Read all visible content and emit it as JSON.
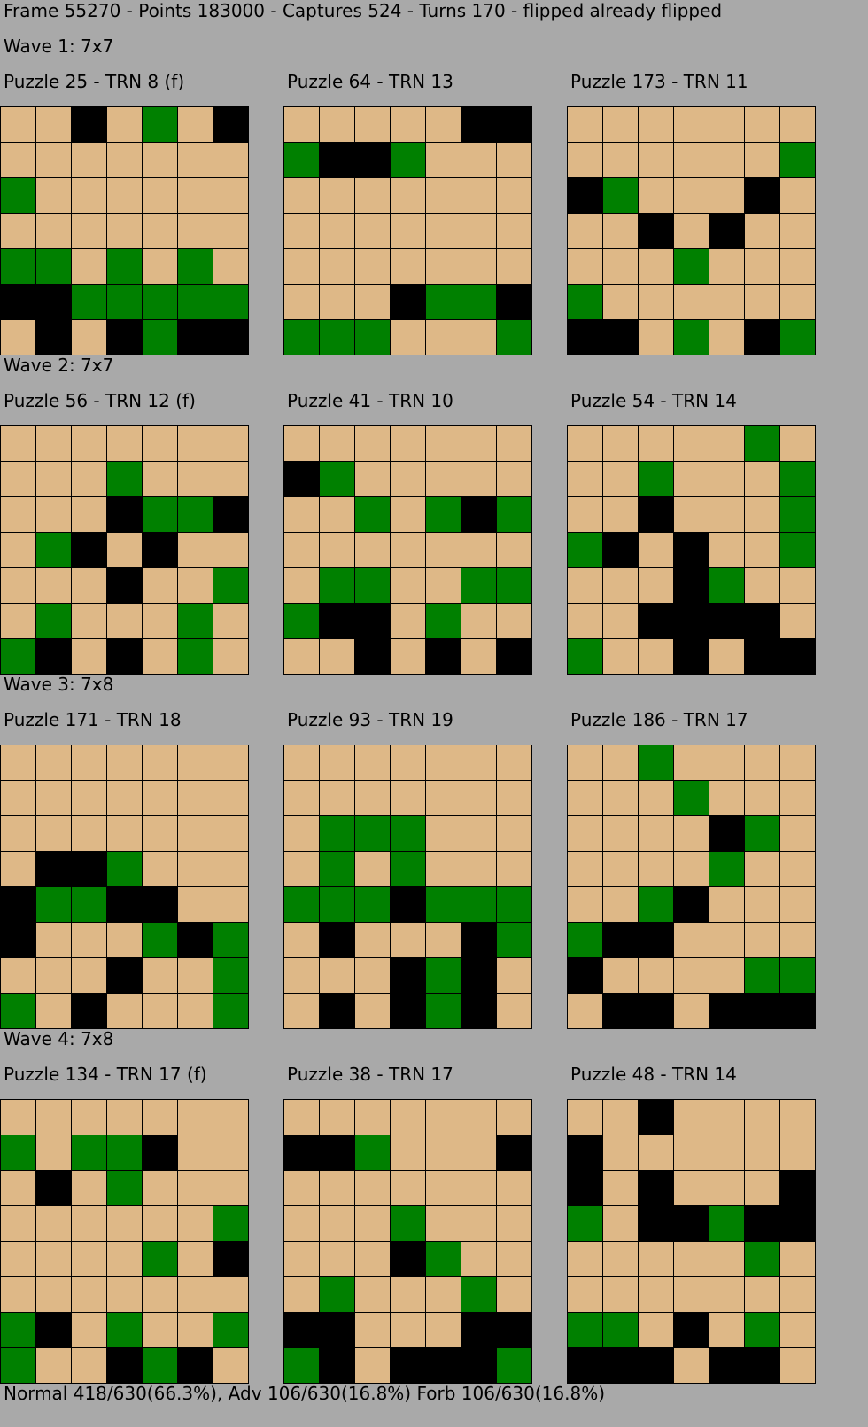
{
  "header": {
    "status": "Frame 55270 - Points 183000 - Captures 524 - Turns 170 - flipped already flipped"
  },
  "waves": [
    {
      "label": "Wave 1: 7x7",
      "puzzles": [
        {
          "title": "Puzzle 25 - TRN 8 (f)",
          "rows": [
            "..B.G.B",
            ".......",
            "G......",
            ".......",
            "GG.G.G.",
            "BBGGGGG",
            ".B.BGBB"
          ]
        },
        {
          "title": "Puzzle 64 - TRN 13",
          "rows": [
            ".....BB",
            "GBBG...",
            ".......",
            ".......",
            ".......",
            "...BGGB",
            "GGG...G"
          ]
        },
        {
          "title": "Puzzle 173 - TRN 11",
          "rows": [
            ".......",
            "......G",
            "BG...B.",
            "..B.B..",
            "...G...",
            "G......",
            "BB.G.BG"
          ]
        }
      ]
    },
    {
      "label": "Wave 2: 7x7",
      "puzzles": [
        {
          "title": "Puzzle 56 - TRN 12 (f)",
          "rows": [
            ".......",
            "...G...",
            "...BGGB",
            ".GB.B..",
            "...B..G",
            ".G...G.",
            "GB.B.G."
          ]
        },
        {
          "title": "Puzzle 41 - TRN 10",
          "rows": [
            ".......",
            "BG.....",
            "..G.GBG",
            ".......",
            ".GG..GG",
            "GBB.G..",
            "..B.B.B"
          ]
        },
        {
          "title": "Puzzle 54 - TRN 14",
          "rows": [
            ".....G.",
            "..G...G",
            "..B...G",
            "GB.B..G",
            "...BG..",
            "..BBBB.",
            "G..B.BB"
          ]
        }
      ]
    },
    {
      "label": "Wave 3: 7x8",
      "puzzles": [
        {
          "title": "Puzzle 171 - TRN 18",
          "rows": [
            ".......",
            ".......",
            ".......",
            ".BBG...",
            "BGGBB..",
            "B...GBG",
            "...B..G",
            "G.B...G"
          ]
        },
        {
          "title": "Puzzle 93 - TRN 19",
          "rows": [
            ".......",
            ".......",
            ".GGG...",
            ".G.G...",
            "GGGBGGG",
            ".B...BG",
            "...BGB.",
            ".B.BGB."
          ]
        },
        {
          "title": "Puzzle 186 - TRN 17",
          "rows": [
            "..G....",
            "...G...",
            "....BG.",
            "....G..",
            "..GB...",
            "GBB....",
            "B....GG",
            ".BB.BBB"
          ]
        }
      ]
    },
    {
      "label": "Wave 4: 7x8",
      "puzzles": [
        {
          "title": "Puzzle 134 - TRN 17 (f)",
          "rows": [
            ".......",
            "G.GGB..",
            ".B.G...",
            "......G",
            "....G.B",
            ".......",
            "GB.G..G",
            "G..BGB."
          ]
        },
        {
          "title": "Puzzle 38 - TRN 17",
          "rows": [
            ".......",
            "BBG...B",
            ".......",
            "...G...",
            "...BG..",
            ".G...G.",
            "BB...BB",
            "GB.BBBG"
          ]
        },
        {
          "title": "Puzzle 48 - TRN 14",
          "rows": [
            "..B....",
            "B......",
            "B.B...B",
            "G.BBGBB",
            ".....G.",
            ".......",
            "GG.B.G.",
            "BBB.BB."
          ]
        }
      ]
    }
  ],
  "footer": {
    "stats": "Normal 418/630(66.3%), Adv 106/630(16.8%) Forb 106/630(16.8%)"
  },
  "colors": {
    "empty": "#deb887",
    "green": "#008000",
    "black": "#000000",
    "background": "#a9a9a9"
  }
}
